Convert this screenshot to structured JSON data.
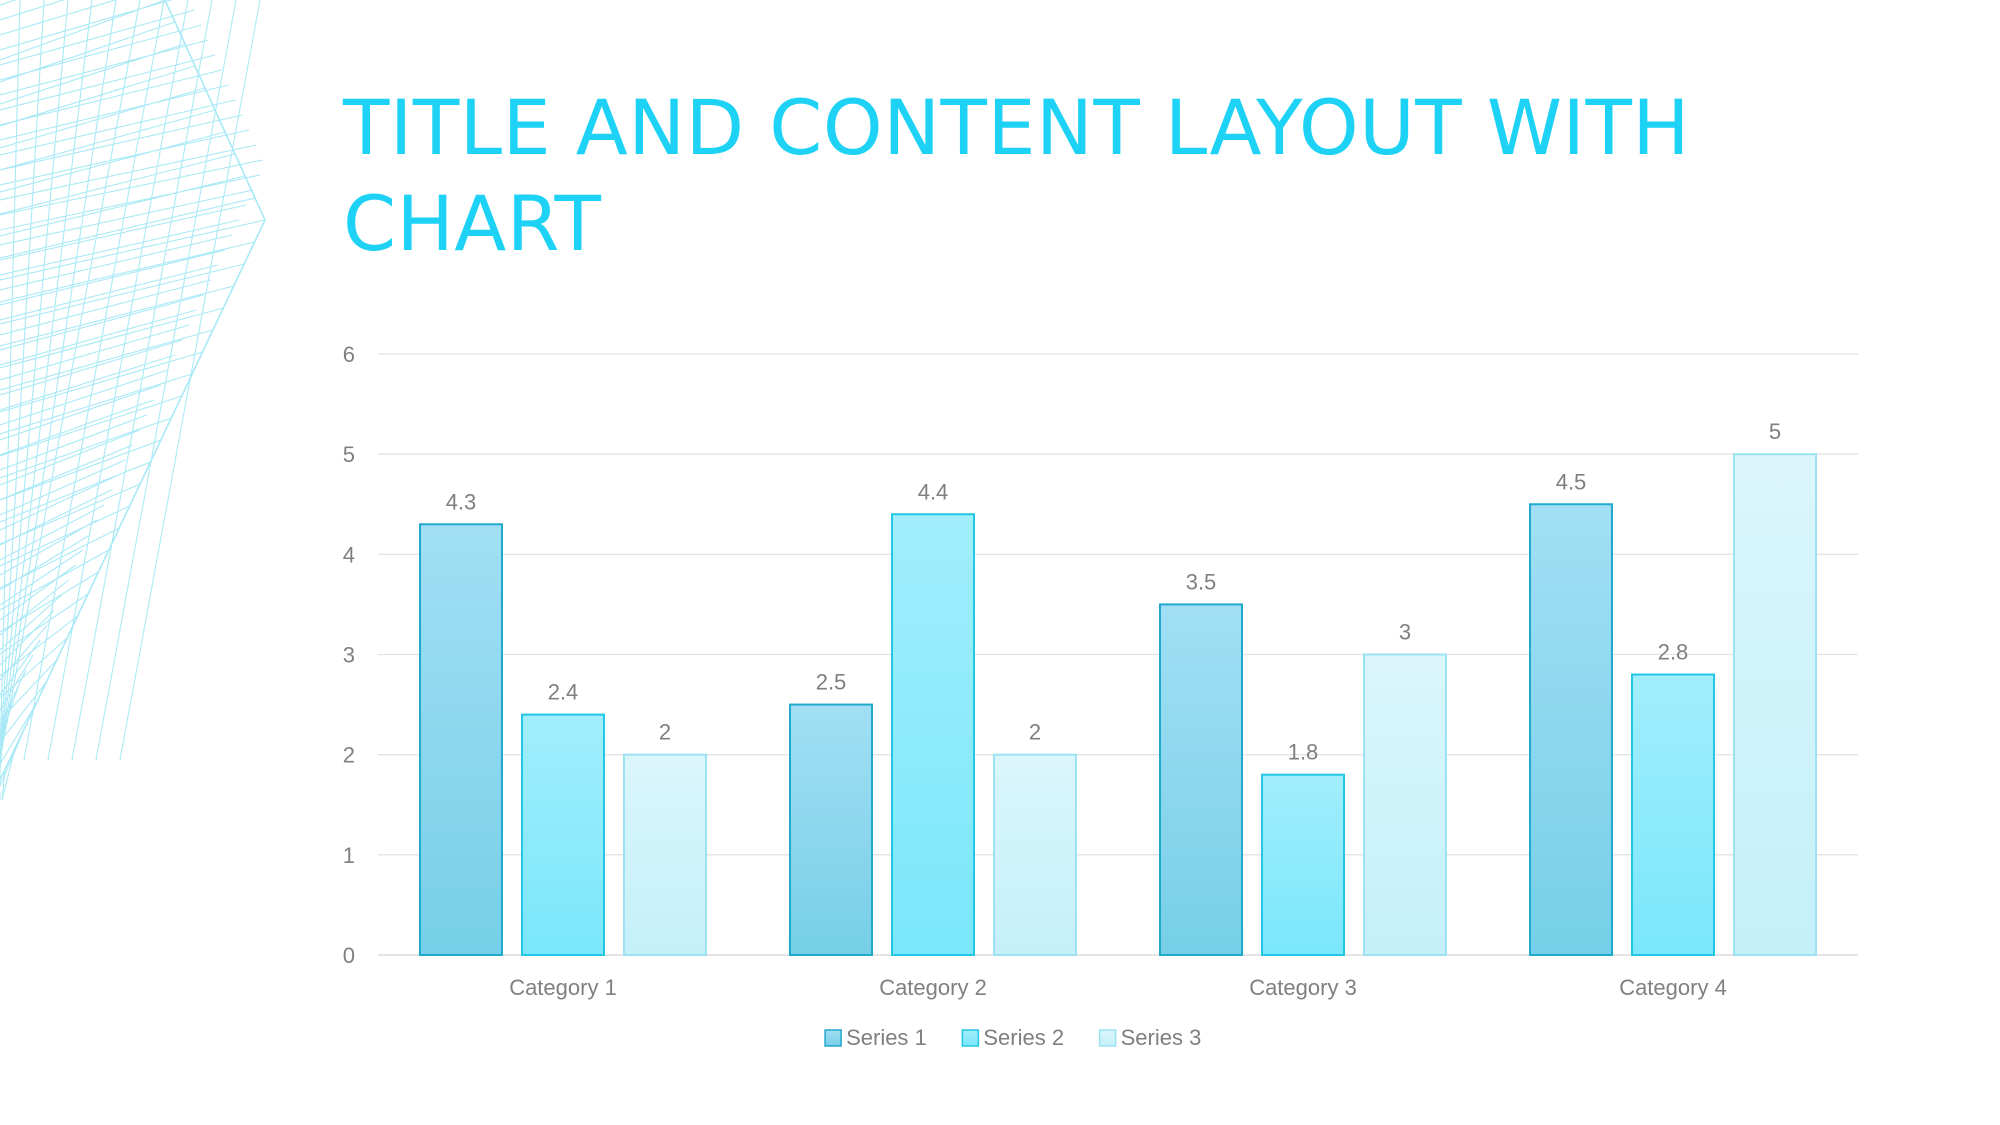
{
  "slide": {
    "title": "TITLE AND CONTENT LAYOUT WITH CHART",
    "accent_color": "#1ED2F5"
  },
  "chart_data": {
    "type": "bar",
    "categories": [
      "Category 1",
      "Category 2",
      "Category 3",
      "Category 4"
    ],
    "series": [
      {
        "name": "Series 1",
        "values": [
          4.3,
          2.5,
          3.5,
          4.5
        ],
        "fill_top": "#A2DFF4",
        "fill_bottom": "#76CFE8",
        "stroke": "#1FA9CC"
      },
      {
        "name": "Series 2",
        "values": [
          2.4,
          4.4,
          1.8,
          2.8
        ],
        "fill_top": "#A1EEFC",
        "fill_bottom": "#7AE7FC",
        "stroke": "#22C7E6"
      },
      {
        "name": "Series 3",
        "values": [
          2,
          2,
          3,
          5
        ],
        "fill_top": "#DBF6FC",
        "fill_bottom": "#C4F0FA",
        "stroke": "#9BE3F2"
      }
    ],
    "ylim": [
      0,
      6
    ],
    "y_ticks": [
      0,
      1,
      2,
      3,
      4,
      5,
      6
    ],
    "data_labels": true,
    "grid": true,
    "legend": "bottom",
    "title": "",
    "xlabel": "",
    "ylabel": ""
  }
}
